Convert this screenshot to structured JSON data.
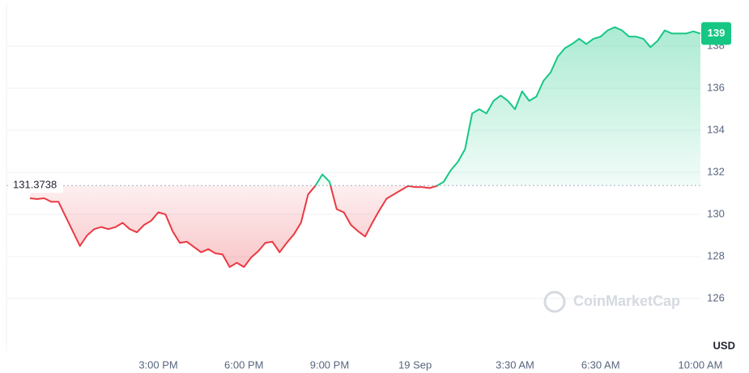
{
  "chart_data": {
    "type": "line",
    "y_unit": "USD",
    "watermark": "CoinMarketCap",
    "baseline": 131.3738,
    "current_price": 139,
    "up_color": "#16c784",
    "down_color": "#ea3943",
    "categories": [
      null,
      null,
      null,
      null,
      null,
      null,
      null,
      null,
      null,
      null,
      null,
      null,
      null,
      null,
      null,
      null,
      null,
      null,
      "3:00 PM",
      null,
      null,
      null,
      null,
      null,
      null,
      null,
      null,
      null,
      null,
      null,
      "6:00 PM",
      null,
      null,
      null,
      null,
      null,
      null,
      null,
      null,
      null,
      null,
      null,
      "9:00 PM",
      null,
      null,
      null,
      null,
      null,
      null,
      null,
      null,
      null,
      null,
      null,
      "19 Sep",
      null,
      null,
      null,
      null,
      null,
      null,
      null,
      null,
      null,
      null,
      null,
      null,
      null,
      "3:30 AM",
      null,
      null,
      null,
      null,
      null,
      null,
      null,
      null,
      null,
      null,
      null,
      "6:30 AM",
      null,
      null,
      null,
      null,
      null,
      null,
      null,
      null,
      null,
      null,
      null,
      null,
      null,
      "10:00 AM"
    ],
    "values": [
      130.77,
      130.73,
      130.77,
      130.6,
      130.6,
      129.9,
      129.2,
      128.5,
      129.0,
      129.3,
      129.4,
      129.3,
      129.4,
      129.6,
      129.3,
      129.15,
      129.5,
      129.7,
      130.1,
      130.0,
      129.2,
      128.65,
      128.7,
      128.45,
      128.2,
      128.35,
      128.15,
      128.1,
      127.5,
      127.7,
      127.5,
      127.95,
      128.25,
      128.65,
      128.7,
      128.2,
      128.65,
      129.05,
      129.6,
      130.95,
      131.35,
      131.9,
      131.55,
      130.25,
      130.1,
      129.5,
      129.2,
      128.95,
      129.6,
      130.2,
      130.75,
      130.95,
      131.15,
      131.35,
      131.3,
      131.3,
      131.25,
      131.35,
      131.55,
      132.1,
      132.5,
      133.1,
      134.8,
      135.0,
      134.8,
      135.4,
      135.65,
      135.4,
      135.0,
      135.85,
      135.4,
      135.6,
      136.35,
      136.75,
      137.5,
      137.9,
      138.1,
      138.35,
      138.1,
      138.35,
      138.45,
      138.75,
      138.9,
      138.75,
      138.45,
      138.45,
      138.35,
      137.95,
      138.25,
      138.75,
      138.6,
      138.6,
      138.6,
      138.7,
      138.6
    ],
    "ylim": [
      123.5,
      140
    ],
    "yticks": [
      126,
      128,
      130,
      132,
      134,
      136,
      138
    ],
    "grid": true
  }
}
